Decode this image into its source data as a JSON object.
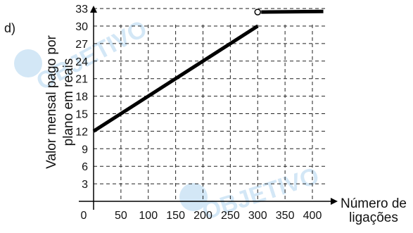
{
  "panel_label": "d)",
  "watermark_text": "OBJETIVO",
  "chart_data": {
    "type": "line",
    "title": "",
    "xlabel": [
      "Número de",
      "ligações"
    ],
    "ylabel": [
      "Valor mensal pago por",
      "plano em reais"
    ],
    "xlim": [
      0,
      420
    ],
    "ylim": [
      0,
      35
    ],
    "grid": true,
    "grid_style": "dashed",
    "x_ticks": [
      0,
      50,
      100,
      150,
      200,
      250,
      300,
      350,
      400
    ],
    "y_ticks": [
      3,
      6,
      9,
      12,
      15,
      18,
      21,
      24,
      27,
      30,
      33
    ],
    "series": [
      {
        "segments": [
          {
            "points": [
              [
                0,
                12
              ],
              [
                300,
                30
              ]
            ],
            "start": "closed",
            "end": "closed"
          },
          {
            "points": [
              [
                300,
                32.4
              ],
              [
                420,
                32.5
              ]
            ],
            "start": "open",
            "end": "none"
          }
        ]
      }
    ]
  }
}
